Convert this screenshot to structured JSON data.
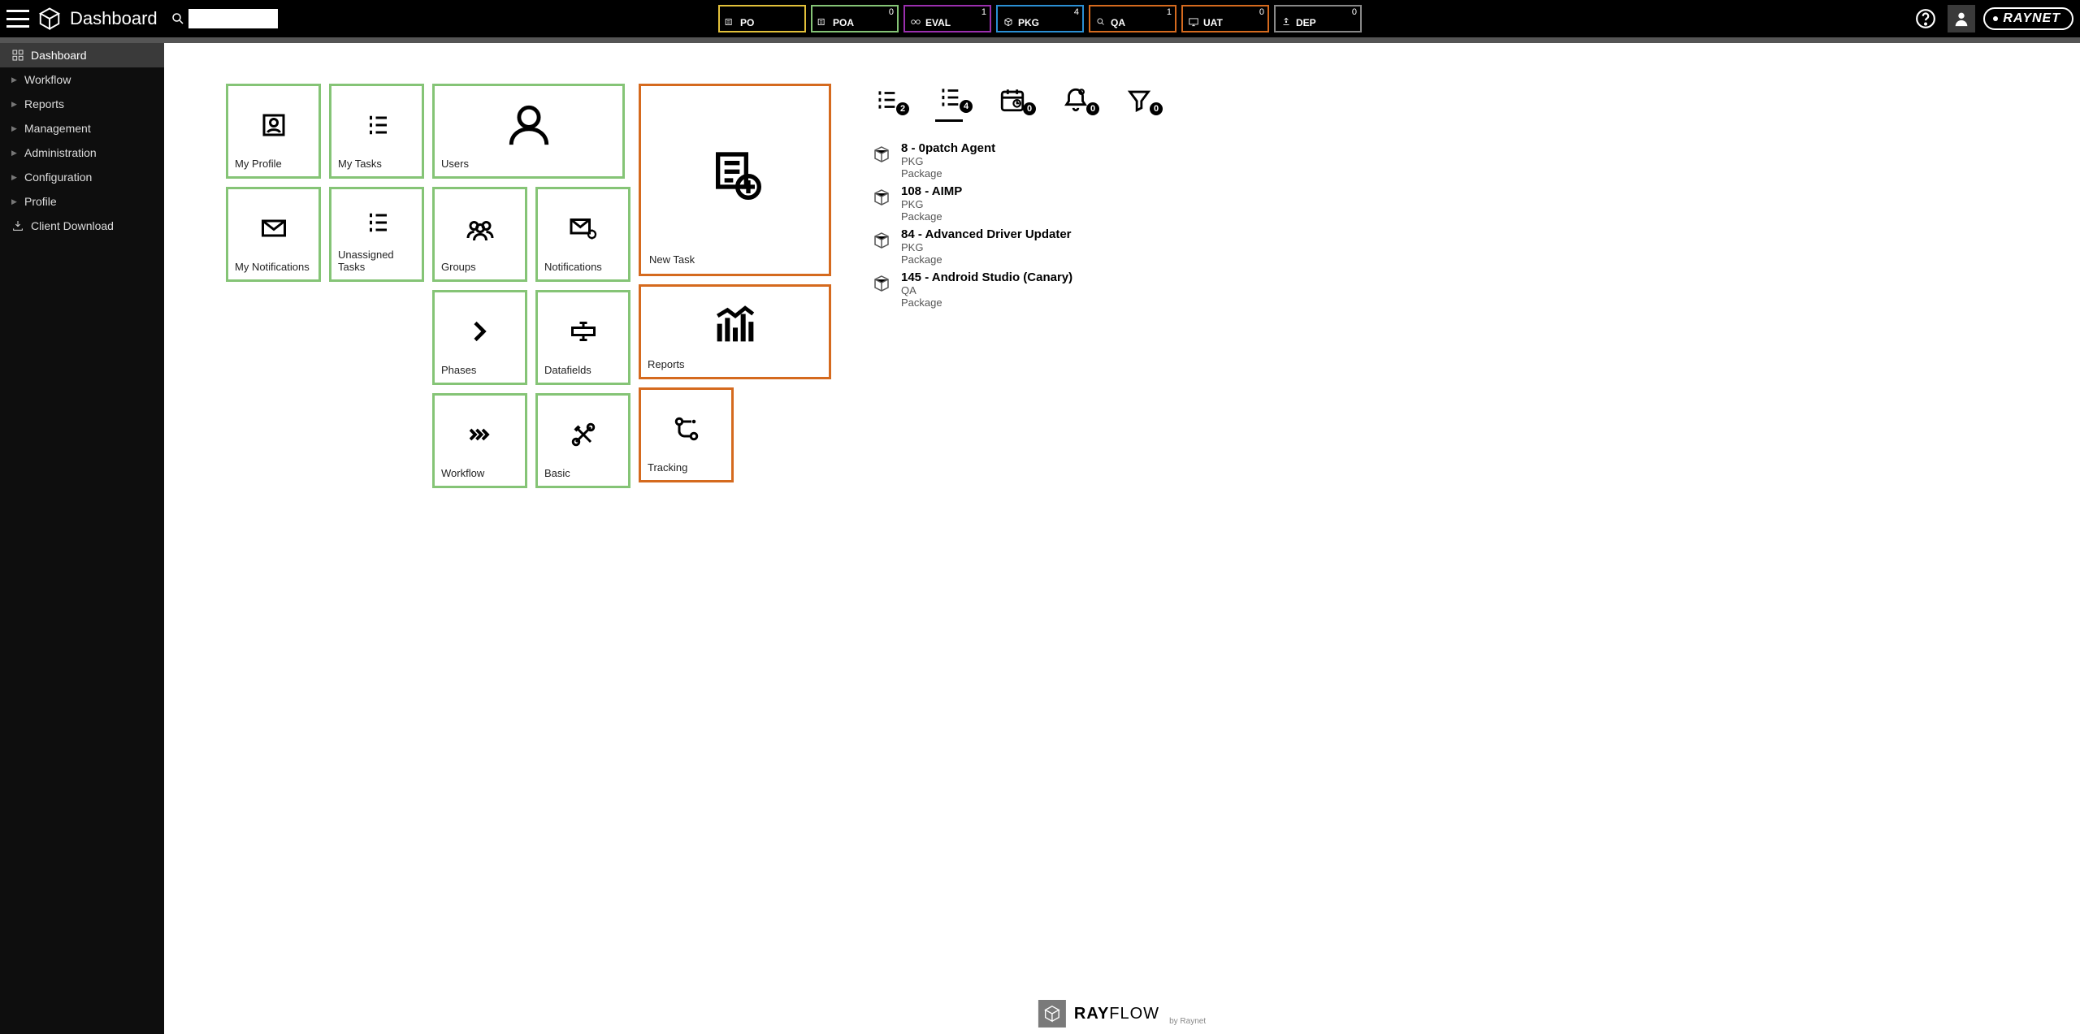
{
  "topbar": {
    "title": "Dashboard",
    "search_value": ""
  },
  "phases": [
    {
      "label": "PO",
      "count": "",
      "color": "#e2c03a"
    },
    {
      "label": "POA",
      "count": "0",
      "color": "#85c476"
    },
    {
      "label": "EVAL",
      "count": "1",
      "color": "#9b2fae"
    },
    {
      "label": "PKG",
      "count": "4",
      "color": "#2a8fd4"
    },
    {
      "label": "QA",
      "count": "1",
      "color": "#d56a1e"
    },
    {
      "label": "UAT",
      "count": "0",
      "color": "#d56a1e"
    },
    {
      "label": "DEP",
      "count": "0",
      "color": "#888888"
    }
  ],
  "sidebar": [
    {
      "label": "Dashboard",
      "icon": "dashboard",
      "active": true
    },
    {
      "label": "Workflow",
      "chevron": true
    },
    {
      "label": "Reports",
      "chevron": true
    },
    {
      "label": "Management",
      "chevron": true
    },
    {
      "label": "Administration",
      "chevron": true
    },
    {
      "label": "Configuration",
      "chevron": true
    },
    {
      "label": "Profile",
      "chevron": true
    },
    {
      "label": "Client Download",
      "icon": "download"
    }
  ],
  "tile_columns": [
    {
      "layout": "single",
      "color": "green",
      "tiles": [
        {
          "label": "My Profile",
          "icon": "profile"
        },
        {
          "label": "My Notifications",
          "icon": "mail"
        }
      ]
    },
    {
      "layout": "single",
      "color": "green",
      "tiles": [
        {
          "label": "My Tasks",
          "icon": "list"
        },
        {
          "label": "Unassigned Tasks",
          "icon": "list"
        }
      ]
    },
    {
      "layout": "double",
      "color": "green",
      "tiles": [
        {
          "label": "Users",
          "icon": "user",
          "size": "med",
          "span": 2
        },
        {
          "label": "Groups",
          "icon": "groups"
        },
        {
          "label": "Notifications",
          "icon": "mail-gear"
        },
        {
          "label": "Phases",
          "icon": "chevrons"
        },
        {
          "label": "Datafields",
          "icon": "datafield"
        },
        {
          "label": "Workflow",
          "icon": "arrows"
        },
        {
          "label": "Basic",
          "icon": "tools"
        }
      ]
    },
    {
      "layout": "single",
      "color": "orange",
      "tiles": [
        {
          "label": "New Task",
          "icon": "new-task",
          "size": "big"
        },
        {
          "label": "Reports",
          "icon": "chart",
          "size": "med"
        },
        {
          "label": "Tracking",
          "icon": "tracking"
        }
      ]
    }
  ],
  "right_panel": {
    "tabs": [
      {
        "icon": "list",
        "count": "2"
      },
      {
        "icon": "list",
        "count": "4",
        "active": true
      },
      {
        "icon": "calendar",
        "count": "0"
      },
      {
        "icon": "bell",
        "count": "0"
      },
      {
        "icon": "filter",
        "count": "0"
      }
    ],
    "tasks": [
      {
        "title": "8 - 0patch Agent",
        "phase": "PKG",
        "type": "Package"
      },
      {
        "title": "108 - AIMP",
        "phase": "PKG",
        "type": "Package"
      },
      {
        "title": "84 - Advanced Driver Updater",
        "phase": "PKG",
        "type": "Package"
      },
      {
        "title": "145 - Android Studio (Canary)",
        "phase": "QA",
        "type": "Package"
      }
    ]
  },
  "footer": {
    "brand1": "RAY",
    "brand2": "FLOW",
    "by": "by Raynet"
  },
  "brand": "raynet"
}
